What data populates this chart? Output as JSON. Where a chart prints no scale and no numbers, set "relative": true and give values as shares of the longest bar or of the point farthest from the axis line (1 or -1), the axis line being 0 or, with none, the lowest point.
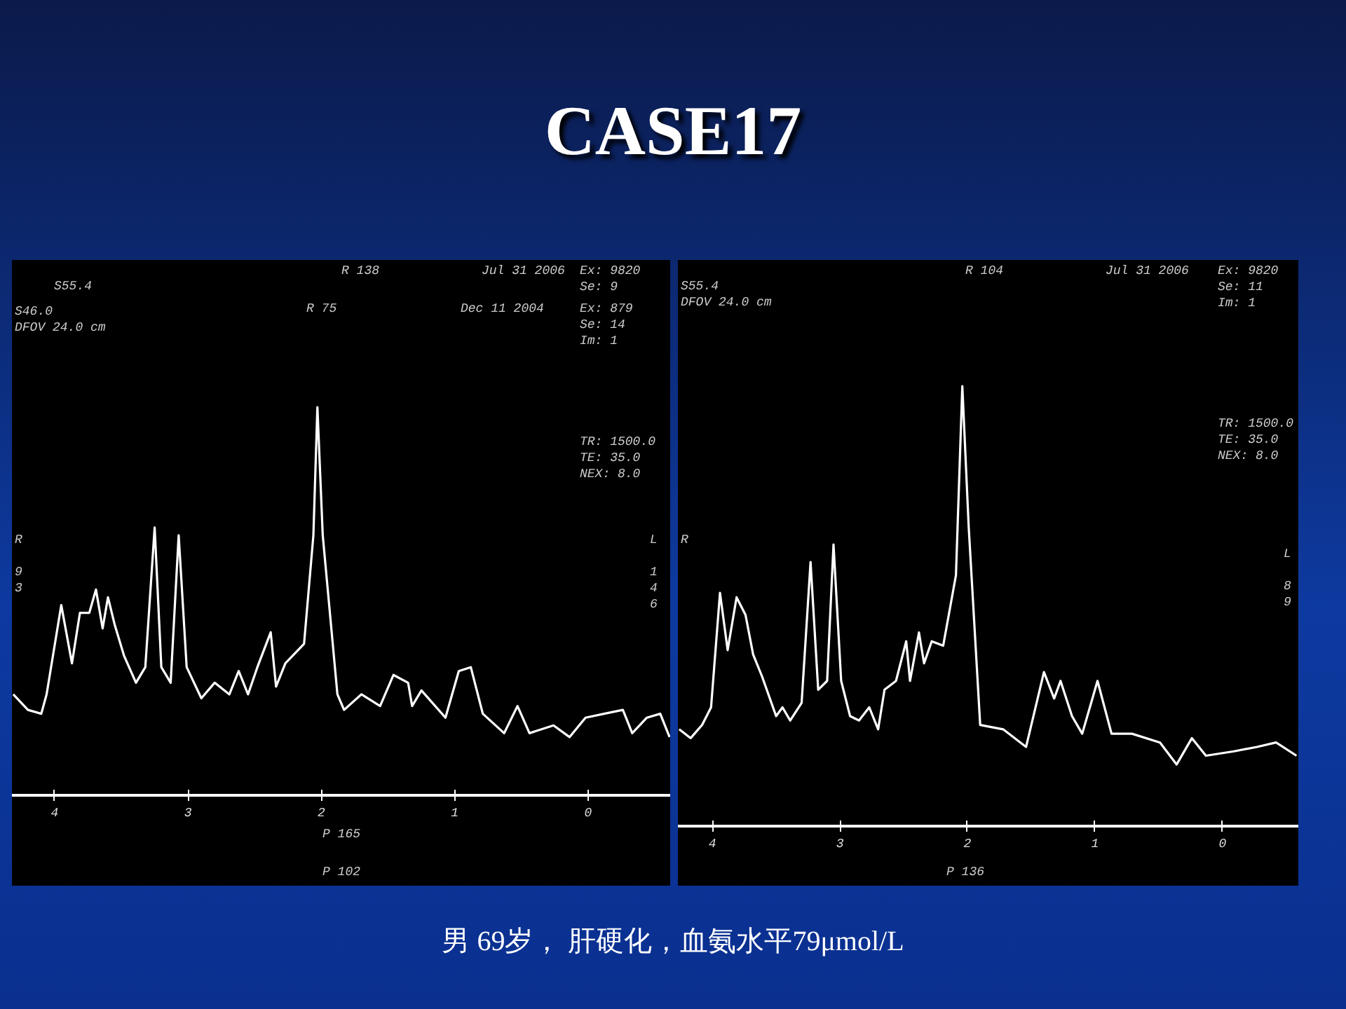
{
  "chart_data": [
    {
      "type": "other",
      "title": "CASE17",
      "annotations": [
        "男 69岁， 肝硬化，血氨水平79μmol/L"
      ]
    },
    {
      "type": "line",
      "relative": true,
      "xlim": [
        4.32,
        -0.62
      ],
      "xticks": [
        4,
        3,
        2,
        1,
        0
      ],
      "annotations": [
        "S55.4",
        "R 138",
        "Jul 31 2006",
        "Ex: 9820\nSe: 9",
        "S46.0\nDFOV 24.0 cm",
        "R 75",
        "Dec 11 2004",
        "Ex: 879\nSe: 14\nIm: 1",
        "TR: 1500.0\nTE: 35.0\nNEX: 8.0",
        "R\n\n9\n3",
        "L\n\n1\n4\n6",
        "P 165",
        "P 102"
      ],
      "series": [
        {
          "color": "#ffffff",
          "x": [
            4.31,
            4.2,
            4.1,
            4.06,
            3.95,
            3.87,
            3.81,
            3.74,
            3.69,
            3.64,
            3.6,
            3.55,
            3.48,
            3.39,
            3.32,
            3.25,
            3.2,
            3.13,
            3.07,
            3.01,
            2.9,
            2.8,
            2.69,
            2.62,
            2.55,
            2.48,
            2.38,
            2.34,
            2.27,
            2.13,
            2.06,
            2.03,
            1.99,
            1.88,
            1.83,
            1.7,
            1.56,
            1.46,
            1.35,
            1.32,
            1.25,
            1.07,
            0.97,
            0.88,
            0.79,
            0.63,
            0.53,
            0.44,
            0.26,
            0.14,
            0.02,
            -0.12,
            -0.26,
            -0.33,
            -0.44,
            -0.54,
            -0.61
          ],
          "values": [
            0.26,
            0.22,
            0.21,
            0.26,
            0.49,
            0.34,
            0.47,
            0.47,
            0.53,
            0.43,
            0.51,
            0.44,
            0.36,
            0.29,
            0.33,
            0.69,
            0.33,
            0.29,
            0.67,
            0.33,
            0.25,
            0.29,
            0.26,
            0.32,
            0.26,
            0.33,
            0.42,
            0.28,
            0.34,
            0.39,
            0.67,
            1,
            0.67,
            0.26,
            0.22,
            0.26,
            0.23,
            0.31,
            0.29,
            0.23,
            0.27,
            0.2,
            0.32,
            0.33,
            0.21,
            0.16,
            0.23,
            0.16,
            0.18,
            0.15,
            0.2,
            0.21,
            0.22,
            0.16,
            0.2,
            0.21,
            0.15
          ]
        }
      ]
    },
    {
      "type": "line",
      "relative": true,
      "xlim": [
        4.27,
        -0.6
      ],
      "xticks": [
        4,
        3,
        2,
        1,
        0
      ],
      "annotations": [
        "S55.4\nDFOV 24.0 cm",
        "R 104",
        "Jul 31 2006",
        "Ex: 9820\nSe: 11\nIm: 1",
        "TR: 1500.0\nTE: 35.0\nNEX: 8.0",
        "R",
        "L\n\n8\n9",
        "P 136"
      ],
      "series": [
        {
          "color": "#ffffff",
          "x": [
            4.26,
            4.17,
            4.08,
            4.01,
            3.94,
            3.88,
            3.81,
            3.74,
            3.68,
            3.61,
            3.5,
            3.45,
            3.39,
            3.3,
            3.23,
            3.17,
            3.1,
            3.05,
            2.99,
            2.92,
            2.85,
            2.77,
            2.7,
            2.65,
            2.56,
            2.48,
            2.45,
            2.38,
            2.34,
            2.28,
            2.19,
            2.09,
            2.04,
            1.99,
            1.9,
            1.72,
            1.54,
            1.4,
            1.32,
            1.27,
            1.18,
            1.1,
            0.98,
            0.87,
            0.71,
            0.49,
            0.36,
            0.24,
            0.13,
            -0.09,
            -0.27,
            -0.42,
            -0.58
          ],
          "values": [
            0.22,
            0.2,
            0.23,
            0.27,
            0.53,
            0.4,
            0.52,
            0.48,
            0.39,
            0.34,
            0.25,
            0.27,
            0.24,
            0.28,
            0.6,
            0.31,
            0.33,
            0.64,
            0.33,
            0.25,
            0.24,
            0.27,
            0.22,
            0.31,
            0.33,
            0.42,
            0.33,
            0.44,
            0.37,
            0.42,
            0.41,
            0.57,
            1,
            0.68,
            0.23,
            0.22,
            0.18,
            0.35,
            0.29,
            0.33,
            0.25,
            0.21,
            0.33,
            0.21,
            0.21,
            0.19,
            0.14,
            0.2,
            0.16,
            0.17,
            0.18,
            0.19,
            0.16
          ]
        }
      ]
    }
  ]
}
